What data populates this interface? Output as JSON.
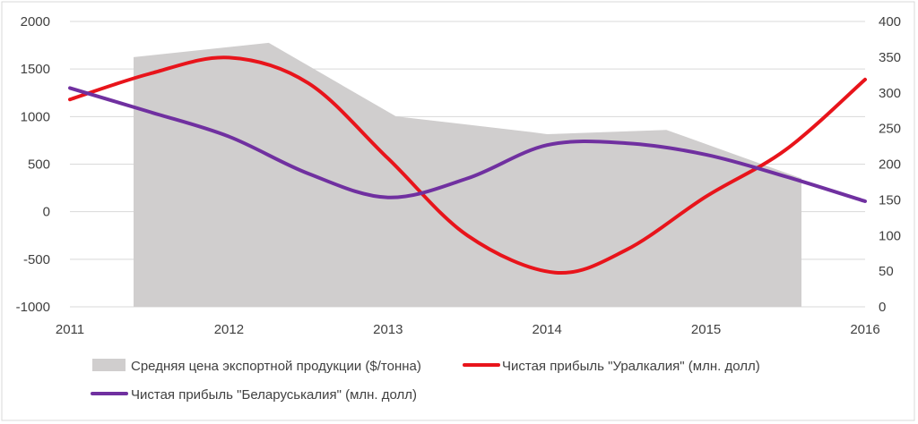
{
  "chart_data": {
    "type": "line",
    "x": [
      "2011",
      "2012",
      "2013",
      "2014",
      "2015",
      "2016"
    ],
    "y_left": {
      "ticks": [
        2000,
        1500,
        1000,
        500,
        0,
        -500,
        -1000
      ],
      "ylim": [
        -1000,
        2000
      ]
    },
    "y_right": {
      "ticks": [
        400,
        350,
        300,
        250,
        200,
        150,
        100,
        50,
        0
      ],
      "ylim": [
        0,
        400
      ]
    },
    "grid": true,
    "legend": "bottom",
    "series": [
      {
        "name": "Средняя цена экспортной продукции ($/тонна)",
        "kind": "area",
        "axis": "right",
        "color": "#d0cece",
        "points": [
          [
            2011.4,
            0
          ],
          [
            2011.4,
            350
          ],
          [
            2012.25,
            370
          ],
          [
            2013.05,
            267
          ],
          [
            2013.9,
            245
          ],
          [
            2014.0,
            242
          ],
          [
            2014.75,
            248
          ],
          [
            2015.6,
            180
          ],
          [
            2015.6,
            0
          ]
        ]
      },
      {
        "name": "Чистая прибыль \"Уралкалия\" (млн. долл)",
        "kind": "line",
        "axis": "left",
        "color": "#e8141b",
        "points": [
          [
            2011.0,
            1180
          ],
          [
            2011.5,
            1450
          ],
          [
            2012.0,
            1620
          ],
          [
            2012.5,
            1350
          ],
          [
            2013.0,
            560
          ],
          [
            2013.5,
            -250
          ],
          [
            2014.05,
            -640
          ],
          [
            2014.5,
            -400
          ],
          [
            2015.0,
            160
          ],
          [
            2015.5,
            650
          ],
          [
            2016.0,
            1390
          ]
        ]
      },
      {
        "name": "Чистая прибыль \"Беларуськалия\" (млн. долл)",
        "kind": "line",
        "axis": "left",
        "color": "#7030a0",
        "points": [
          [
            2011.0,
            1300
          ],
          [
            2011.5,
            1050
          ],
          [
            2012.0,
            790
          ],
          [
            2012.5,
            400
          ],
          [
            2013.0,
            150
          ],
          [
            2013.5,
            350
          ],
          [
            2014.0,
            700
          ],
          [
            2014.5,
            720
          ],
          [
            2015.0,
            600
          ],
          [
            2015.5,
            370
          ],
          [
            2016.0,
            110
          ]
        ]
      }
    ]
  }
}
